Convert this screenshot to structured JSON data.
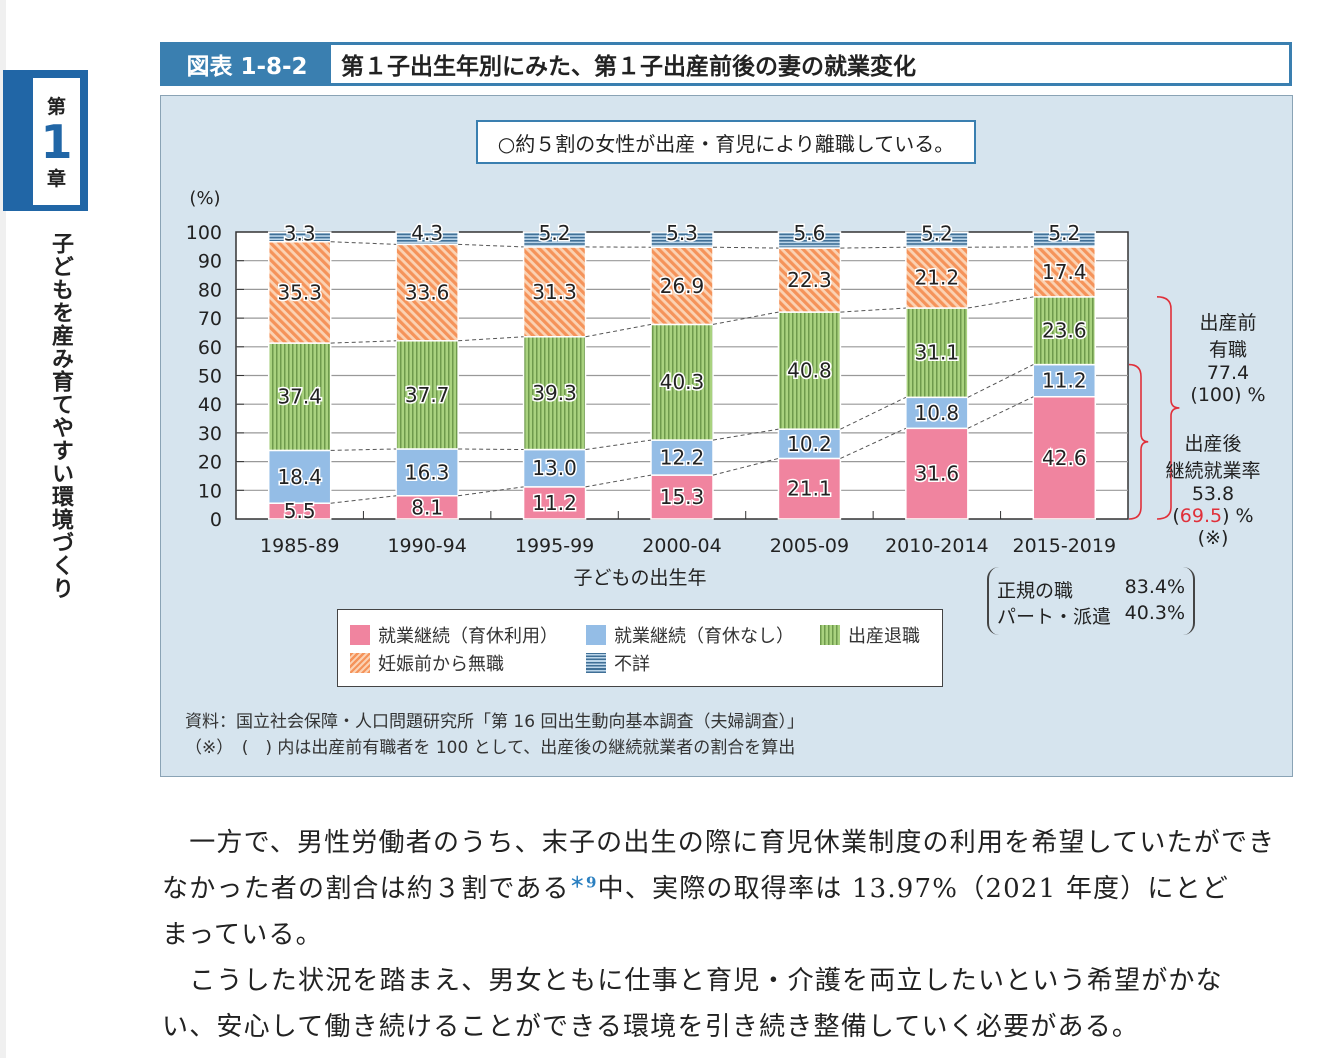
{
  "sidebar": {
    "chapter_prefix": "第",
    "chapter_number": "1",
    "chapter_suffix": "章",
    "chapter_title": "子どもを産み育てやすい環境づくり"
  },
  "figure": {
    "number": "図表 1-8-2",
    "title": "第１子出生年別にみた、第１子出産前後の妻の就業変化",
    "summary": "○約５割の女性が出産・育児により離職している。"
  },
  "chart_data": {
    "type": "bar",
    "stacked": true,
    "ylabel": "(%)",
    "xlabel": "子どもの出生年",
    "ylim": [
      0,
      100
    ],
    "yticks": [
      0,
      10,
      20,
      30,
      40,
      50,
      60,
      70,
      80,
      90,
      100
    ],
    "grid": true,
    "categories": [
      "1985-89",
      "1990-94",
      "1995-99",
      "2000-04",
      "2005-09",
      "2010-2014",
      "2015-2019"
    ],
    "series": [
      {
        "name": "就業継続（育休利用）",
        "color": "#f0849f",
        "pattern": "solid",
        "values": [
          5.5,
          8.1,
          11.2,
          15.3,
          21.1,
          31.6,
          42.6
        ]
      },
      {
        "name": "就業継続（育休なし）",
        "color": "#94bde6",
        "pattern": "solid",
        "values": [
          18.4,
          16.3,
          13.0,
          12.2,
          10.2,
          10.8,
          11.2
        ]
      },
      {
        "name": "出産退職",
        "color": "#96c46e",
        "pattern": "vertical-stripes",
        "values": [
          37.4,
          37.7,
          39.3,
          40.3,
          40.8,
          31.1,
          23.6
        ]
      },
      {
        "name": "妊娠前から無職",
        "color": "#f5a36e",
        "pattern": "diagonal-stripes",
        "values": [
          35.3,
          33.6,
          31.3,
          26.9,
          22.3,
          21.2,
          17.4
        ]
      },
      {
        "name": "不詳",
        "color": "#5b8fb8",
        "pattern": "horizontal-stripes",
        "values": [
          3.3,
          4.3,
          5.2,
          5.3,
          5.6,
          5.2,
          5.2
        ]
      }
    ],
    "legend_placement": "bottom",
    "annotations": {
      "before": {
        "l1": "出産前",
        "l2": "有職",
        "l3": "77.4",
        "l4a": "(",
        "l4b": "100",
        "l4c": ") %"
      },
      "after": {
        "l1": "出産後",
        "l2": "継続就業率",
        "l3": "53.8",
        "l4a": "(",
        "l4b": "69.5",
        "l4c": ") %",
        "l5": "(※)"
      },
      "brace_color": "#e0303a",
      "employment": [
        {
          "label": "正規の職",
          "value": "83.4%"
        },
        {
          "label": "パート・派遣",
          "value": "40.3%"
        }
      ]
    }
  },
  "source": {
    "line1": "資料：国立社会保障・人口問題研究所「第 16 回出生動向基本調査（夫婦調査）」",
    "line2": "（※）　(　) 内は出産前有職者を 100 として、出産後の継続就業者の割合を算出"
  },
  "body": {
    "p1_l1": "　一方で、男性労働者のうち、末子の出生の際に育児休業制度の利用を希望していたができ",
    "p1_l2a": "なかった者の割合は約３割である",
    "p1_fn": "＊9",
    "p1_l2b": "中、実際の取得率は 13.97%（2021 年度）にとど",
    "p1_l3": "まっている。",
    "p2_l1": "　こうした状況を踏まえ、男女ともに仕事と育児・介護を両立したいという希望がかな",
    "p2_l2": "い、安心して働き続けることができる環境を引き続き整備していく必要がある。"
  }
}
